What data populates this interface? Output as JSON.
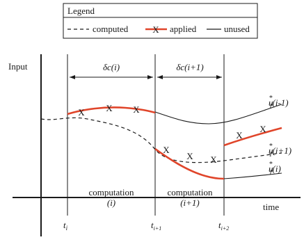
{
  "legend": {
    "title": "Legend",
    "computed": "computed",
    "applied": "applied",
    "unused": "unused",
    "applied_marker": "X"
  },
  "axes": {
    "y_label": "Input",
    "x_label": "time"
  },
  "intervals": [
    {
      "label": "δc(i)",
      "body_line1": "computation",
      "body_line2": "(i)"
    },
    {
      "label": "δc(i+1)",
      "body_line1": "computation",
      "body_line2": "(i+1)"
    }
  ],
  "time_ticks": [
    {
      "base": "t",
      "sub": "i"
    },
    {
      "base": "t",
      "sub": "i+1"
    },
    {
      "base": "t",
      "sub": "i+2"
    }
  ],
  "curve_labels": [
    {
      "base": "u",
      "sup": "*",
      "sub": "T",
      "arg": "(i-1)"
    },
    {
      "base": "u",
      "sup": "*",
      "sub": "T",
      "arg": "(i+1)"
    },
    {
      "base": "u",
      "sup": "*",
      "sub": "T",
      "arg": "(i)"
    }
  ],
  "colors": {
    "applied": "#e0452a",
    "line": "#1a1a1a"
  }
}
